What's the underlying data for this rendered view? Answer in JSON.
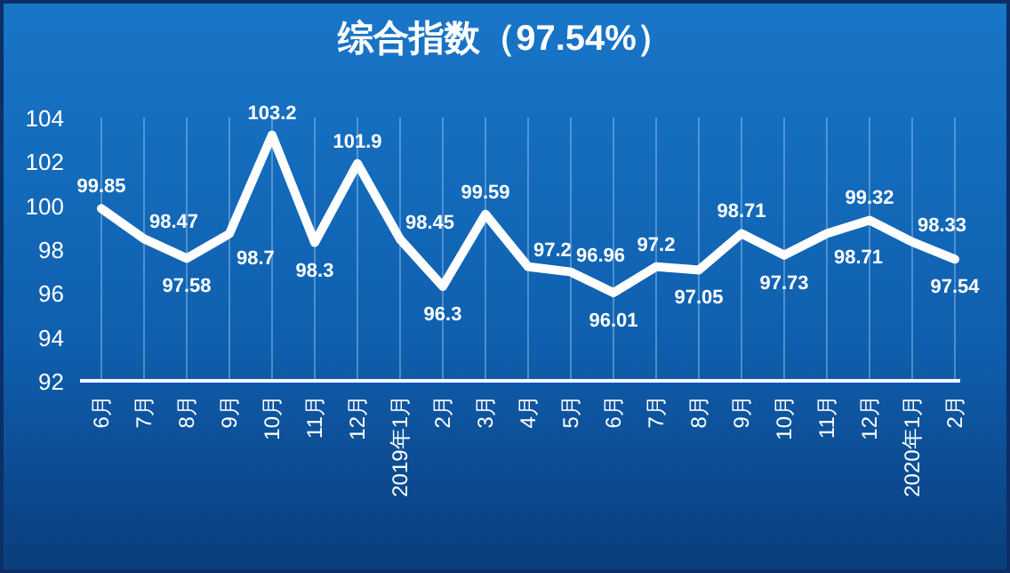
{
  "chart_data": {
    "type": "line",
    "title": "综合指数（97.54%）",
    "categories": [
      "6月",
      "7月",
      "8月",
      "9月",
      "10月",
      "11月",
      "12月",
      "2019年1月",
      "2月",
      "3月",
      "4月",
      "5月",
      "6月",
      "7月",
      "8月",
      "9月",
      "10月",
      "11月",
      "12月",
      "2020年1月",
      "2月"
    ],
    "series": [
      {
        "color": "#ffffff",
        "values": [
          99.85,
          98.47,
          97.58,
          98.7,
          103.2,
          98.3,
          101.9,
          98.45,
          96.3,
          99.59,
          97.2,
          96.96,
          96.01,
          97.2,
          97.05,
          98.71,
          97.73,
          98.71,
          99.32,
          98.33,
          97.54
        ]
      }
    ],
    "ylim": [
      92,
      104
    ],
    "yticks": [
      92,
      94,
      96,
      98,
      100,
      102,
      104
    ],
    "grid": "x",
    "data_labels": true,
    "marker": "none",
    "line_style": "solid"
  }
}
